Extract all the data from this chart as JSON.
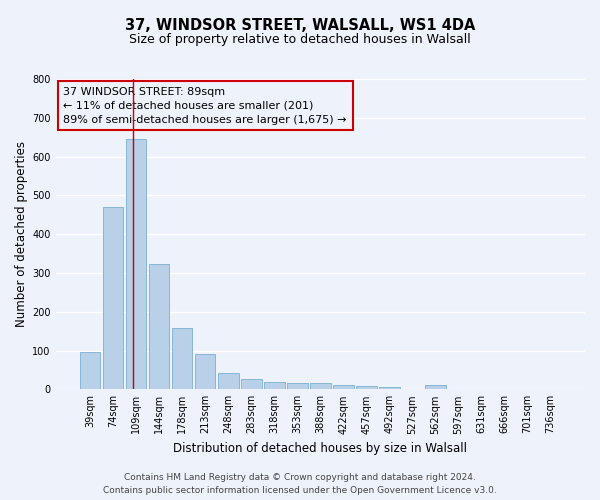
{
  "title": "37, WINDSOR STREET, WALSALL, WS1 4DA",
  "subtitle": "Size of property relative to detached houses in Walsall",
  "xlabel": "Distribution of detached houses by size in Walsall",
  "ylabel": "Number of detached properties",
  "categories": [
    "39sqm",
    "74sqm",
    "109sqm",
    "144sqm",
    "178sqm",
    "213sqm",
    "248sqm",
    "283sqm",
    "318sqm",
    "353sqm",
    "388sqm",
    "422sqm",
    "457sqm",
    "492sqm",
    "527sqm",
    "562sqm",
    "597sqm",
    "631sqm",
    "666sqm",
    "701sqm",
    "736sqm"
  ],
  "values": [
    95,
    470,
    645,
    323,
    158,
    91,
    42,
    27,
    18,
    17,
    15,
    12,
    8,
    5,
    0,
    10,
    0,
    0,
    0,
    0,
    0
  ],
  "bar_color": "#b8d0e8",
  "bar_edge_color": "#7aafd4",
  "marker_line_color": "#cc0000",
  "annotation_title": "37 WINDSOR STREET: 89sqm",
  "annotation_line1": "← 11% of detached houses are smaller (201)",
  "annotation_line2": "89% of semi-detached houses are larger (1,675) →",
  "annotation_box_edgecolor": "#cc0000",
  "ylim": [
    0,
    800
  ],
  "yticks": [
    0,
    100,
    200,
    300,
    400,
    500,
    600,
    700,
    800
  ],
  "footer1": "Contains HM Land Registry data © Crown copyright and database right 2024.",
  "footer2": "Contains public sector information licensed under the Open Government Licence v3.0.",
  "background_color": "#eef2fa",
  "grid_color": "#ffffff",
  "title_fontsize": 10.5,
  "subtitle_fontsize": 9,
  "axis_label_fontsize": 8.5,
  "tick_fontsize": 7,
  "annotation_fontsize": 8,
  "footer_fontsize": 6.5
}
